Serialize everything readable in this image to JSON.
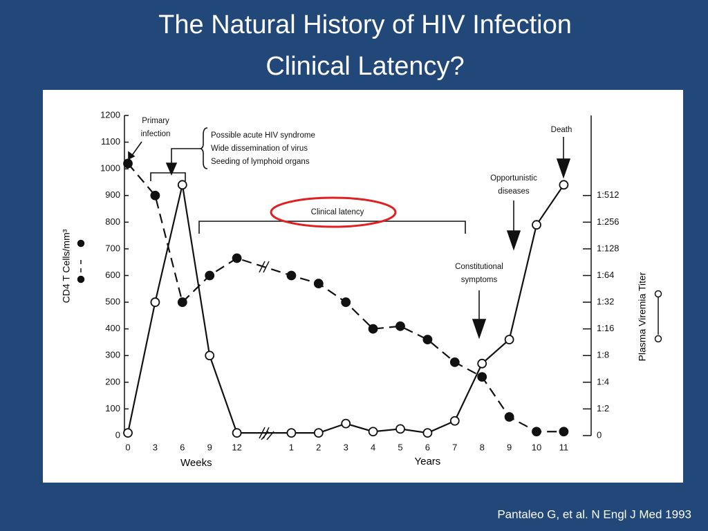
{
  "chart_data": {
    "type": "line",
    "title": "The Natural History of HIV Infection",
    "subtitle": "Clinical Latency?",
    "categories": [
      "0",
      "3",
      "6",
      "9",
      "12",
      "1",
      "2",
      "3",
      "4",
      "5",
      "6",
      "7",
      "8",
      "9",
      "10",
      "11"
    ],
    "xlabels": [
      "Weeks",
      "Years"
    ],
    "ylabel": "CD4 T Cells/mm³",
    "y2label": "Plasma Viremia Titer",
    "series": [
      {
        "color": "#111111",
        "style": "dashed",
        "marker": "filled",
        "values": [
          1020,
          900,
          500,
          600,
          665,
          600,
          570,
          500,
          400,
          410,
          360,
          275,
          220,
          70,
          15,
          15
        ]
      },
      {
        "color": "#111111",
        "style": "solid",
        "marker": "open",
        "axis": "y2",
        "values": [
          0.1,
          5.0,
          9.4,
          3.0,
          0.1,
          0.1,
          0.1,
          0.45,
          0.15,
          0.25,
          0.1,
          0.55,
          2.7,
          3.6,
          7.9,
          9.4
        ]
      }
    ],
    "ylim": [
      0,
      1200
    ],
    "yticks": [
      0,
      100,
      200,
      300,
      400,
      500,
      600,
      700,
      800,
      900,
      1000,
      1100,
      1200
    ],
    "y2lim": [
      0,
      12
    ],
    "y2ticks": [
      0,
      {
        "value": 1,
        "label": "1:2"
      },
      {
        "value": 2,
        "label": "1:4"
      },
      {
        "value": 3,
        "label": "1:8"
      },
      {
        "value": 4,
        "label": "1:16"
      },
      {
        "value": 5,
        "label": "1:32"
      },
      {
        "value": 6,
        "label": "1:64"
      },
      {
        "value": 7,
        "label": "1:128"
      },
      {
        "value": 8,
        "label": "1:256"
      },
      {
        "value": 9,
        "label": "1:512"
      }
    ],
    "annotations": [
      {
        "lines": [
          "Primary",
          "infection"
        ]
      },
      {
        "lines": [
          "Possible acute HIV syndrome",
          "Wide dissemination of virus",
          "Seeding of lymphoid organs"
        ]
      },
      {
        "lines": [
          "Clinical latency"
        ]
      },
      {
        "lines": [
          "Constitutional",
          "symptoms"
        ]
      },
      {
        "lines": [
          "Opportunistic",
          "diseases"
        ]
      },
      {
        "lines": [
          "Death"
        ]
      }
    ],
    "source": "Pantaleo G, et al. N Engl J Med 1993"
  }
}
